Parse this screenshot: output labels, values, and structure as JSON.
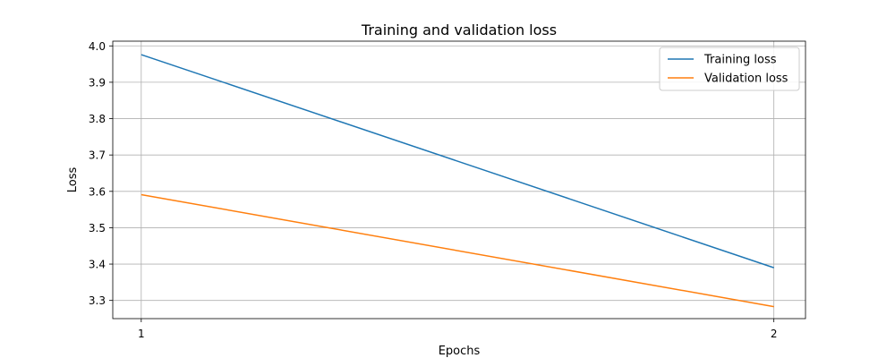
{
  "chart_data": {
    "type": "line",
    "title": "Training and validation loss",
    "xlabel": "Epochs",
    "ylabel": "Loss",
    "x": [
      1,
      2
    ],
    "xticks": [
      "1",
      "2"
    ],
    "yticks": [
      "3.3",
      "3.4",
      "3.5",
      "3.6",
      "3.7",
      "3.8",
      "3.9",
      "4.0"
    ],
    "xlim": [
      0.955,
      2.05
    ],
    "ylim": [
      3.25,
      4.013
    ],
    "grid": true,
    "legend_position": "top-right",
    "series": [
      {
        "name": "Training loss",
        "values": [
          3.976,
          3.39
        ],
        "color": "#1f77b4"
      },
      {
        "name": "Validation loss",
        "values": [
          3.591,
          3.283
        ],
        "color": "#ff7f0e"
      }
    ]
  }
}
